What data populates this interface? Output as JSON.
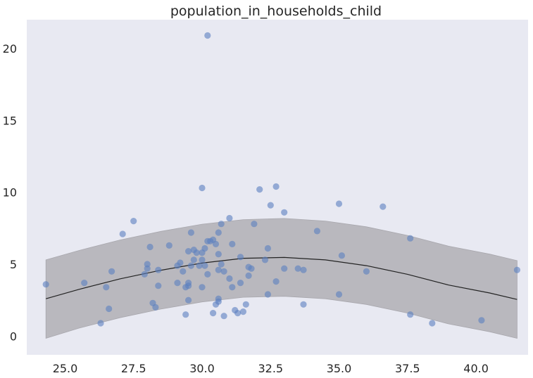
{
  "chart_data": {
    "type": "scatter",
    "title": "population_in_households_child",
    "xlabel": "",
    "ylabel": "",
    "xlim": [
      23.6,
      41.9
    ],
    "ylim": [
      -1.3,
      22.0
    ],
    "xticks": [
      "25.0",
      "27.5",
      "30.0",
      "32.5",
      "35.0",
      "37.5",
      "40.0"
    ],
    "xtick_values": [
      25.0,
      27.5,
      30.0,
      32.5,
      35.0,
      37.5,
      40.0
    ],
    "yticks": [
      "0",
      "5",
      "10",
      "15",
      "20"
    ],
    "ytick_values": [
      0,
      5,
      10,
      15,
      20
    ],
    "grid": false,
    "colors": {
      "background": "#e8e9f2",
      "points": "#5a7fc0",
      "band": "#b9b8be",
      "fit_line": "#222222"
    },
    "points": [
      {
        "x": 24.3,
        "y": 3.6
      },
      {
        "x": 25.7,
        "y": 3.7
      },
      {
        "x": 26.3,
        "y": 0.9
      },
      {
        "x": 26.5,
        "y": 3.4
      },
      {
        "x": 26.6,
        "y": 1.9
      },
      {
        "x": 26.7,
        "y": 4.5
      },
      {
        "x": 27.1,
        "y": 7.1
      },
      {
        "x": 27.5,
        "y": 8.0
      },
      {
        "x": 27.9,
        "y": 4.3
      },
      {
        "x": 28.0,
        "y": 5.0
      },
      {
        "x": 28.0,
        "y": 4.7
      },
      {
        "x": 28.1,
        "y": 6.2
      },
      {
        "x": 28.2,
        "y": 2.3
      },
      {
        "x": 28.3,
        "y": 2.0
      },
      {
        "x": 28.4,
        "y": 3.5
      },
      {
        "x": 28.4,
        "y": 4.6
      },
      {
        "x": 28.8,
        "y": 6.3
      },
      {
        "x": 29.1,
        "y": 4.9
      },
      {
        "x": 29.1,
        "y": 3.7
      },
      {
        "x": 29.2,
        "y": 5.1
      },
      {
        "x": 29.3,
        "y": 4.5
      },
      {
        "x": 29.4,
        "y": 3.4
      },
      {
        "x": 29.4,
        "y": 1.5
      },
      {
        "x": 29.5,
        "y": 3.5
      },
      {
        "x": 29.5,
        "y": 3.7
      },
      {
        "x": 29.5,
        "y": 2.5
      },
      {
        "x": 29.5,
        "y": 5.9
      },
      {
        "x": 29.6,
        "y": 4.9
      },
      {
        "x": 29.6,
        "y": 7.2
      },
      {
        "x": 29.7,
        "y": 5.3
      },
      {
        "x": 29.7,
        "y": 6.0
      },
      {
        "x": 29.8,
        "y": 5.8
      },
      {
        "x": 29.9,
        "y": 4.9
      },
      {
        "x": 30.0,
        "y": 5.3
      },
      {
        "x": 30.0,
        "y": 5.8
      },
      {
        "x": 30.0,
        "y": 3.4
      },
      {
        "x": 30.0,
        "y": 10.3
      },
      {
        "x": 30.1,
        "y": 6.1
      },
      {
        "x": 30.1,
        "y": 4.9
      },
      {
        "x": 30.2,
        "y": 4.3
      },
      {
        "x": 30.2,
        "y": 6.6
      },
      {
        "x": 30.2,
        "y": 20.9
      },
      {
        "x": 30.3,
        "y": 6.6
      },
      {
        "x": 30.4,
        "y": 6.7
      },
      {
        "x": 30.4,
        "y": 1.6
      },
      {
        "x": 30.5,
        "y": 6.4
      },
      {
        "x": 30.5,
        "y": 2.2
      },
      {
        "x": 30.6,
        "y": 2.6
      },
      {
        "x": 30.6,
        "y": 4.6
      },
      {
        "x": 30.6,
        "y": 5.7
      },
      {
        "x": 30.6,
        "y": 7.2
      },
      {
        "x": 30.6,
        "y": 2.4
      },
      {
        "x": 30.7,
        "y": 5.0
      },
      {
        "x": 30.7,
        "y": 7.8
      },
      {
        "x": 30.8,
        "y": 1.4
      },
      {
        "x": 30.8,
        "y": 4.5
      },
      {
        "x": 31.0,
        "y": 4.0
      },
      {
        "x": 31.0,
        "y": 8.2
      },
      {
        "x": 31.1,
        "y": 6.4
      },
      {
        "x": 31.1,
        "y": 3.4
      },
      {
        "x": 31.2,
        "y": 1.8
      },
      {
        "x": 31.3,
        "y": 1.6
      },
      {
        "x": 31.4,
        "y": 5.5
      },
      {
        "x": 31.4,
        "y": 3.7
      },
      {
        "x": 31.5,
        "y": 1.7
      },
      {
        "x": 31.6,
        "y": 2.2
      },
      {
        "x": 31.7,
        "y": 4.2
      },
      {
        "x": 31.7,
        "y": 4.8
      },
      {
        "x": 31.8,
        "y": 4.7
      },
      {
        "x": 31.9,
        "y": 7.8
      },
      {
        "x": 32.1,
        "y": 10.2
      },
      {
        "x": 32.3,
        "y": 5.3
      },
      {
        "x": 32.4,
        "y": 6.1
      },
      {
        "x": 32.4,
        "y": 2.9
      },
      {
        "x": 32.5,
        "y": 9.1
      },
      {
        "x": 32.7,
        "y": 10.4
      },
      {
        "x": 32.7,
        "y": 3.8
      },
      {
        "x": 33.0,
        "y": 8.6
      },
      {
        "x": 33.0,
        "y": 4.7
      },
      {
        "x": 33.5,
        "y": 4.7
      },
      {
        "x": 33.7,
        "y": 4.6
      },
      {
        "x": 33.7,
        "y": 2.2
      },
      {
        "x": 34.2,
        "y": 7.3
      },
      {
        "x": 35.0,
        "y": 9.2
      },
      {
        "x": 35.0,
        "y": 2.9
      },
      {
        "x": 35.1,
        "y": 5.6
      },
      {
        "x": 36.0,
        "y": 4.5
      },
      {
        "x": 36.6,
        "y": 9.0
      },
      {
        "x": 37.6,
        "y": 6.8
      },
      {
        "x": 37.6,
        "y": 1.5
      },
      {
        "x": 38.4,
        "y": 0.9
      },
      {
        "x": 40.2,
        "y": 1.1
      },
      {
        "x": 41.5,
        "y": 4.6
      }
    ],
    "fit_line": [
      {
        "x": 24.3,
        "y": 2.6
      },
      {
        "x": 25.5,
        "y": 3.25
      },
      {
        "x": 27.0,
        "y": 3.98
      },
      {
        "x": 28.5,
        "y": 4.58
      },
      {
        "x": 30.0,
        "y": 5.08
      },
      {
        "x": 31.5,
        "y": 5.41
      },
      {
        "x": 33.0,
        "y": 5.47
      },
      {
        "x": 34.5,
        "y": 5.3
      },
      {
        "x": 36.0,
        "y": 4.9
      },
      {
        "x": 37.5,
        "y": 4.3
      },
      {
        "x": 39.0,
        "y": 3.55
      },
      {
        "x": 40.5,
        "y": 3.0
      },
      {
        "x": 41.5,
        "y": 2.55
      }
    ],
    "band_upper": [
      {
        "x": 24.3,
        "y": 5.3
      },
      {
        "x": 25.5,
        "y": 5.95
      },
      {
        "x": 27.0,
        "y": 6.68
      },
      {
        "x": 28.5,
        "y": 7.28
      },
      {
        "x": 30.0,
        "y": 7.78
      },
      {
        "x": 31.5,
        "y": 8.1
      },
      {
        "x": 33.0,
        "y": 8.18
      },
      {
        "x": 34.5,
        "y": 8.0
      },
      {
        "x": 36.0,
        "y": 7.6
      },
      {
        "x": 37.5,
        "y": 7.0
      },
      {
        "x": 39.0,
        "y": 6.25
      },
      {
        "x": 40.5,
        "y": 5.7
      },
      {
        "x": 41.5,
        "y": 5.25
      }
    ],
    "band_lower": [
      {
        "x": 24.3,
        "y": -0.15
      },
      {
        "x": 25.5,
        "y": 0.55
      },
      {
        "x": 27.0,
        "y": 1.28
      },
      {
        "x": 28.5,
        "y": 1.88
      },
      {
        "x": 30.0,
        "y": 2.38
      },
      {
        "x": 31.5,
        "y": 2.7
      },
      {
        "x": 33.0,
        "y": 2.77
      },
      {
        "x": 34.5,
        "y": 2.6
      },
      {
        "x": 36.0,
        "y": 2.2
      },
      {
        "x": 37.5,
        "y": 1.6
      },
      {
        "x": 39.0,
        "y": 0.85
      },
      {
        "x": 40.5,
        "y": 0.3
      },
      {
        "x": 41.5,
        "y": -0.15
      }
    ]
  }
}
